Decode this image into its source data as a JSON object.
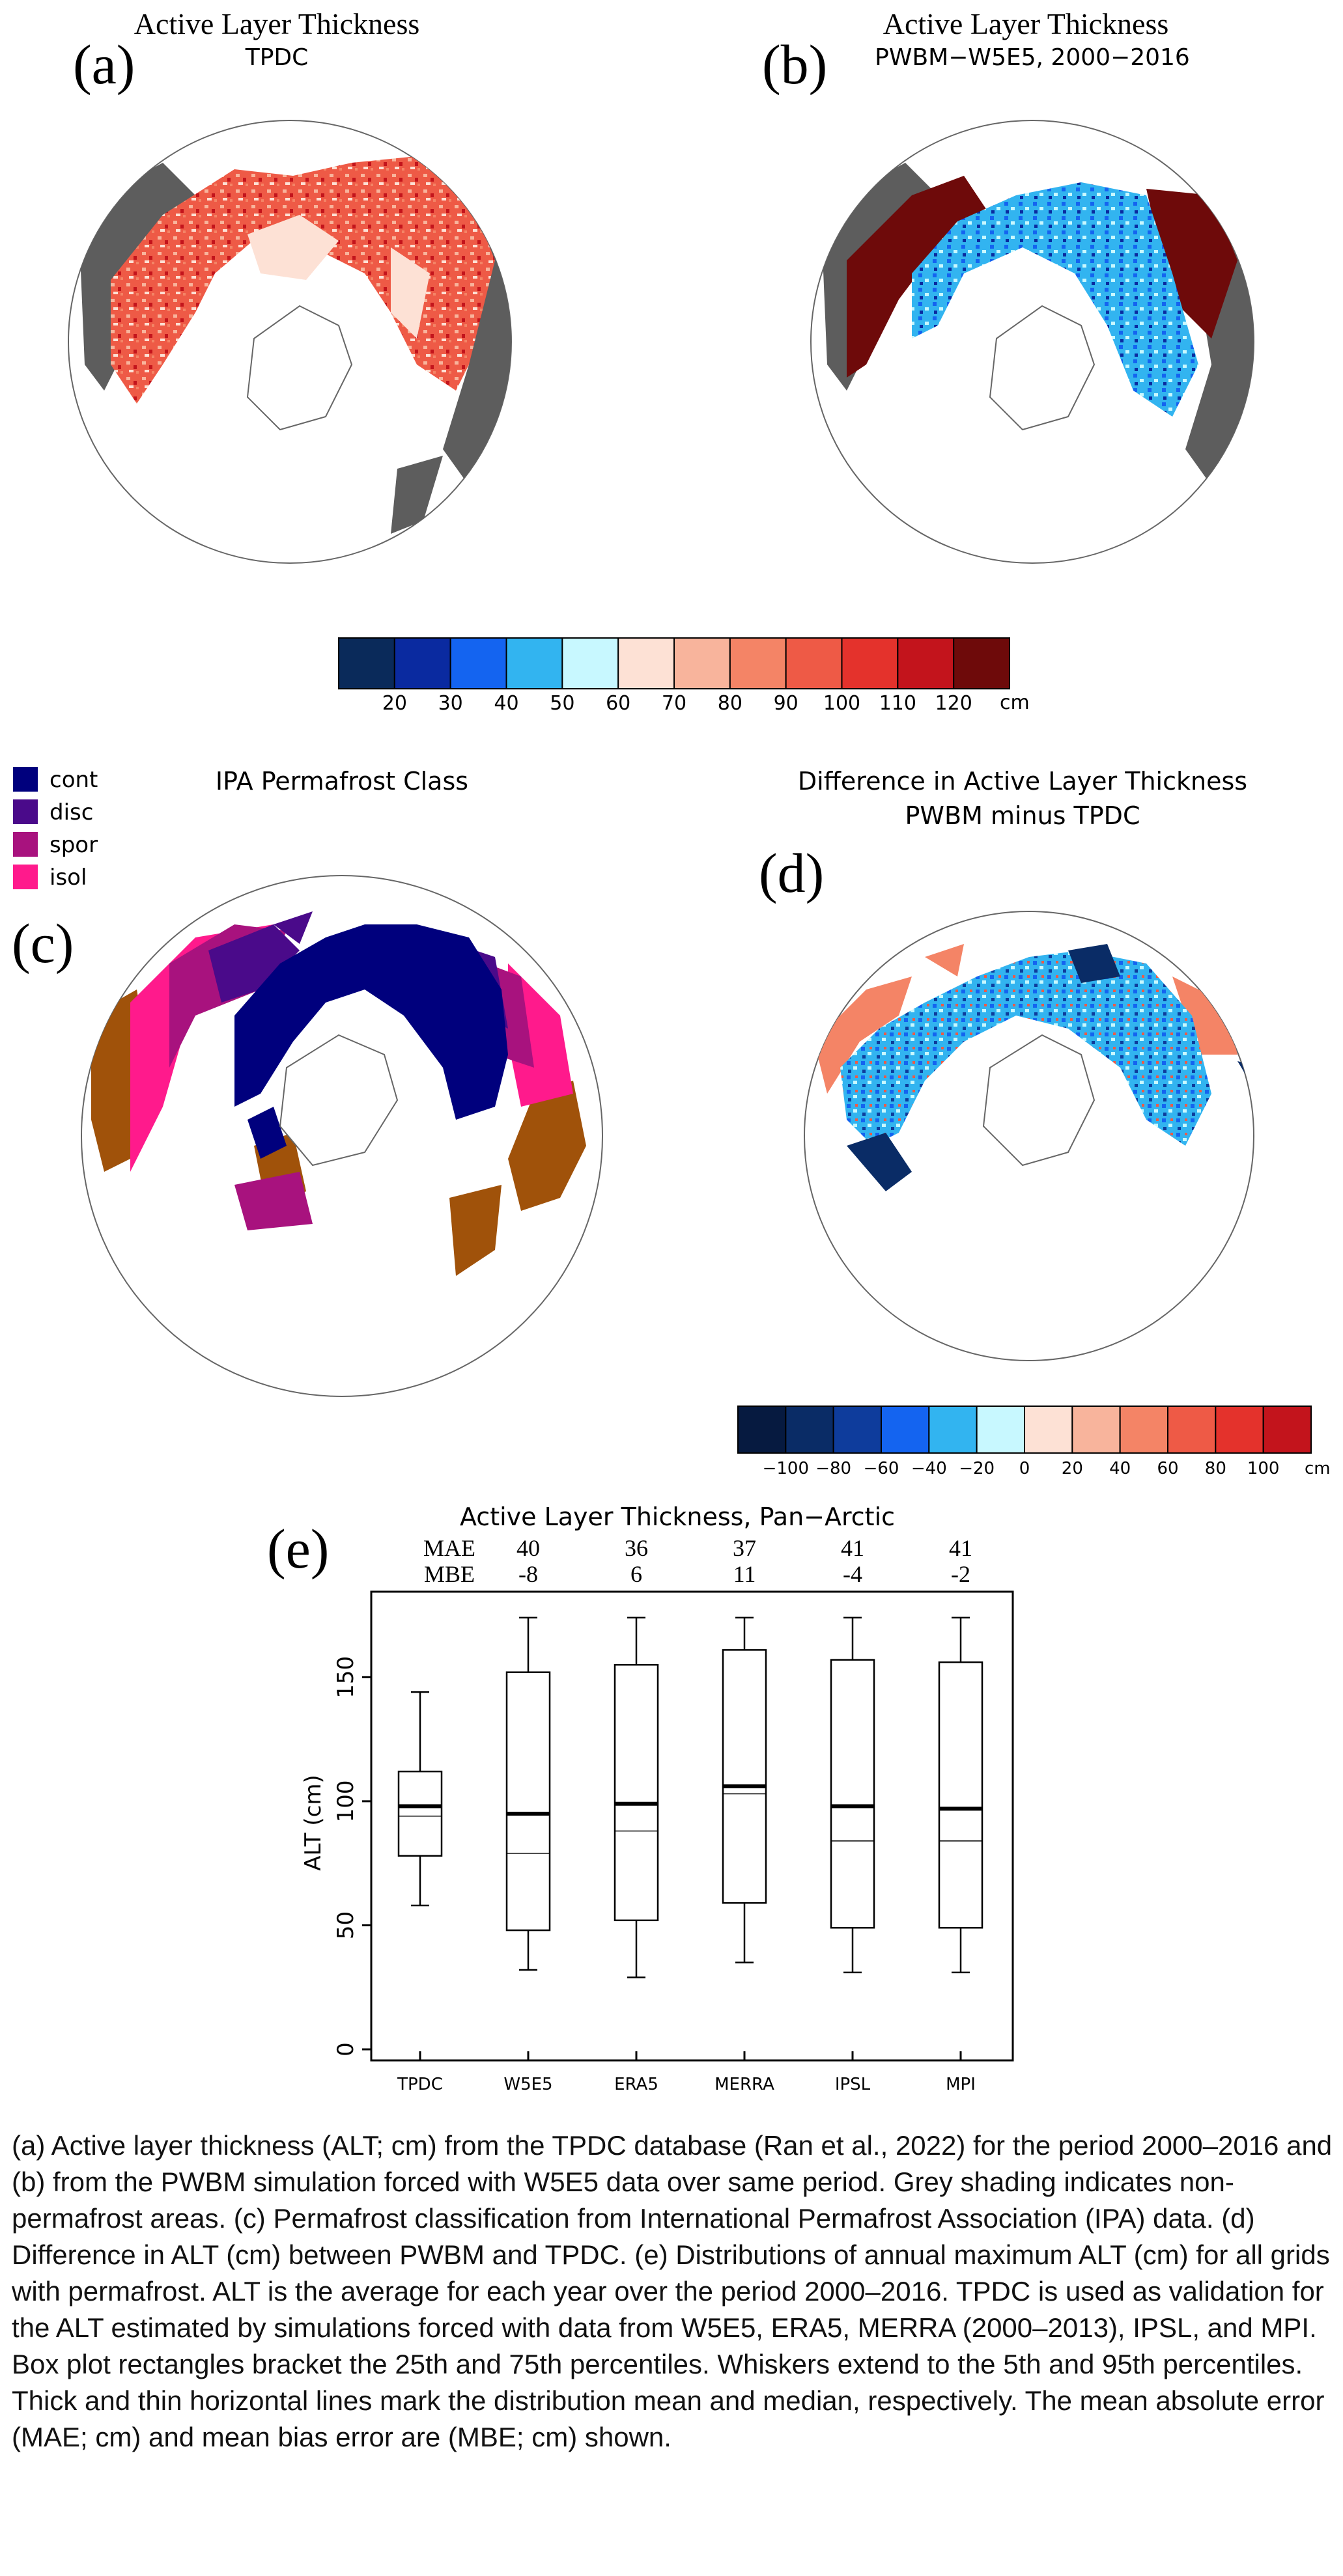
{
  "panels": {
    "a": {
      "letter": "(a)",
      "title": "Active Layer Thickness",
      "subtitle": "TPDC"
    },
    "b": {
      "letter": "(b)",
      "title": "Active Layer Thickness",
      "subtitle": "PWBM−W5E5, 2000−2016"
    },
    "c": {
      "letter": "(c)",
      "title": "IPA Permafrost Class",
      "legend": [
        {
          "label": "cont",
          "color": "#00007d"
        },
        {
          "label": "disc",
          "color": "#4a0a8a"
        },
        {
          "label": "spor",
          "color": "#a8127e"
        },
        {
          "label": "isol",
          "color": "#ff1a8c"
        }
      ],
      "nonpermafrost_color": "#a0520a"
    },
    "d": {
      "letter": "(d)",
      "title": "Difference in Active Layer Thickness",
      "subtitle": "PWBM minus TPDC"
    },
    "e": {
      "letter": "(e)"
    }
  },
  "colorbar_alt": {
    "colors": [
      "#0a2a5a",
      "#0a2aa0",
      "#1464f0",
      "#32b4f0",
      "#c8f8ff",
      "#fde1d5",
      "#f8b49c",
      "#f48466",
      "#ee5a46",
      "#e4322c",
      "#c3141c",
      "#6e0a0a"
    ],
    "ticks": [
      "20",
      "30",
      "40",
      "50",
      "60",
      "70",
      "80",
      "90",
      "100",
      "110",
      "120"
    ],
    "unit": "cm"
  },
  "colorbar_diff": {
    "colors": [
      "#061a40",
      "#0a2c66",
      "#0e3c9c",
      "#1464f0",
      "#32b4f0",
      "#c8f8ff",
      "#fde1d5",
      "#f8b49c",
      "#f48466",
      "#ee5a46",
      "#e4322c",
      "#c3141c"
    ],
    "ticks": [
      "−100",
      "−80",
      "−60",
      "−40",
      "−20",
      "0",
      "20",
      "40",
      "60",
      "80",
      "100"
    ],
    "unit": "cm"
  },
  "chart_data": {
    "type": "box",
    "title": "Active Layer Thickness, Pan−Arctic",
    "xlabel": "",
    "ylabel": "ALT (cm)",
    "ylim": [
      0,
      180
    ],
    "yticks": [
      0,
      50,
      100,
      150
    ],
    "categories": [
      "TPDC",
      "W5E5",
      "ERA5",
      "MERRA",
      "IPSL",
      "MPI"
    ],
    "stats_labels": {
      "mae": "MAE",
      "mbe": "MBE"
    },
    "mae": [
      "",
      "40",
      "36",
      "37",
      "41",
      "41"
    ],
    "mbe": [
      "",
      "-8",
      "6",
      "11",
      "-4",
      "-2"
    ],
    "boxes": [
      {
        "p5": 58,
        "p25": 78,
        "median": 94,
        "mean": 98,
        "p75": 112,
        "p95": 144
      },
      {
        "p5": 32,
        "p25": 48,
        "median": 79,
        "mean": 95,
        "p75": 152,
        "p95": 174
      },
      {
        "p5": 29,
        "p25": 52,
        "median": 88,
        "mean": 99,
        "p75": 155,
        "p95": 174
      },
      {
        "p5": 35,
        "p25": 59,
        "median": 103,
        "mean": 106,
        "p75": 161,
        "p95": 174
      },
      {
        "p5": 31,
        "p25": 49,
        "median": 84,
        "mean": 98,
        "p75": 157,
        "p95": 174
      },
      {
        "p5": 31,
        "p25": 49,
        "median": 84,
        "mean": 97,
        "p75": 156,
        "p95": 174
      }
    ]
  },
  "caption": "(a) Active layer thickness (ALT; cm) from the TPDC database (Ran et al., 2022) for the period 2000–2016 and (b) from the PWBM simulation forced with W5E5 data over same period. Grey shading indicates non-permafrost areas. (c) Permafrost classification from International Permafrost Association (IPA) data. (d) Difference in ALT (cm) between PWBM and TPDC. (e) Distributions of annual maximum ALT (cm) for all grids with permafrost. ALT is the average for each year over the period 2000–2016. TPDC is used as validation for the ALT estimated by simulations forced with data from W5E5, ERA5, MERRA (2000–2013), IPSL, and MPI. Box plot rectangles bracket the 25th and 75th percentiles. Whiskers extend to the 5th and 95th percentiles. Thick and thin horizontal lines mark the distribution mean and median, respectively. The mean absolute error (MAE; cm) and mean bias error are (MBE; cm) shown."
}
